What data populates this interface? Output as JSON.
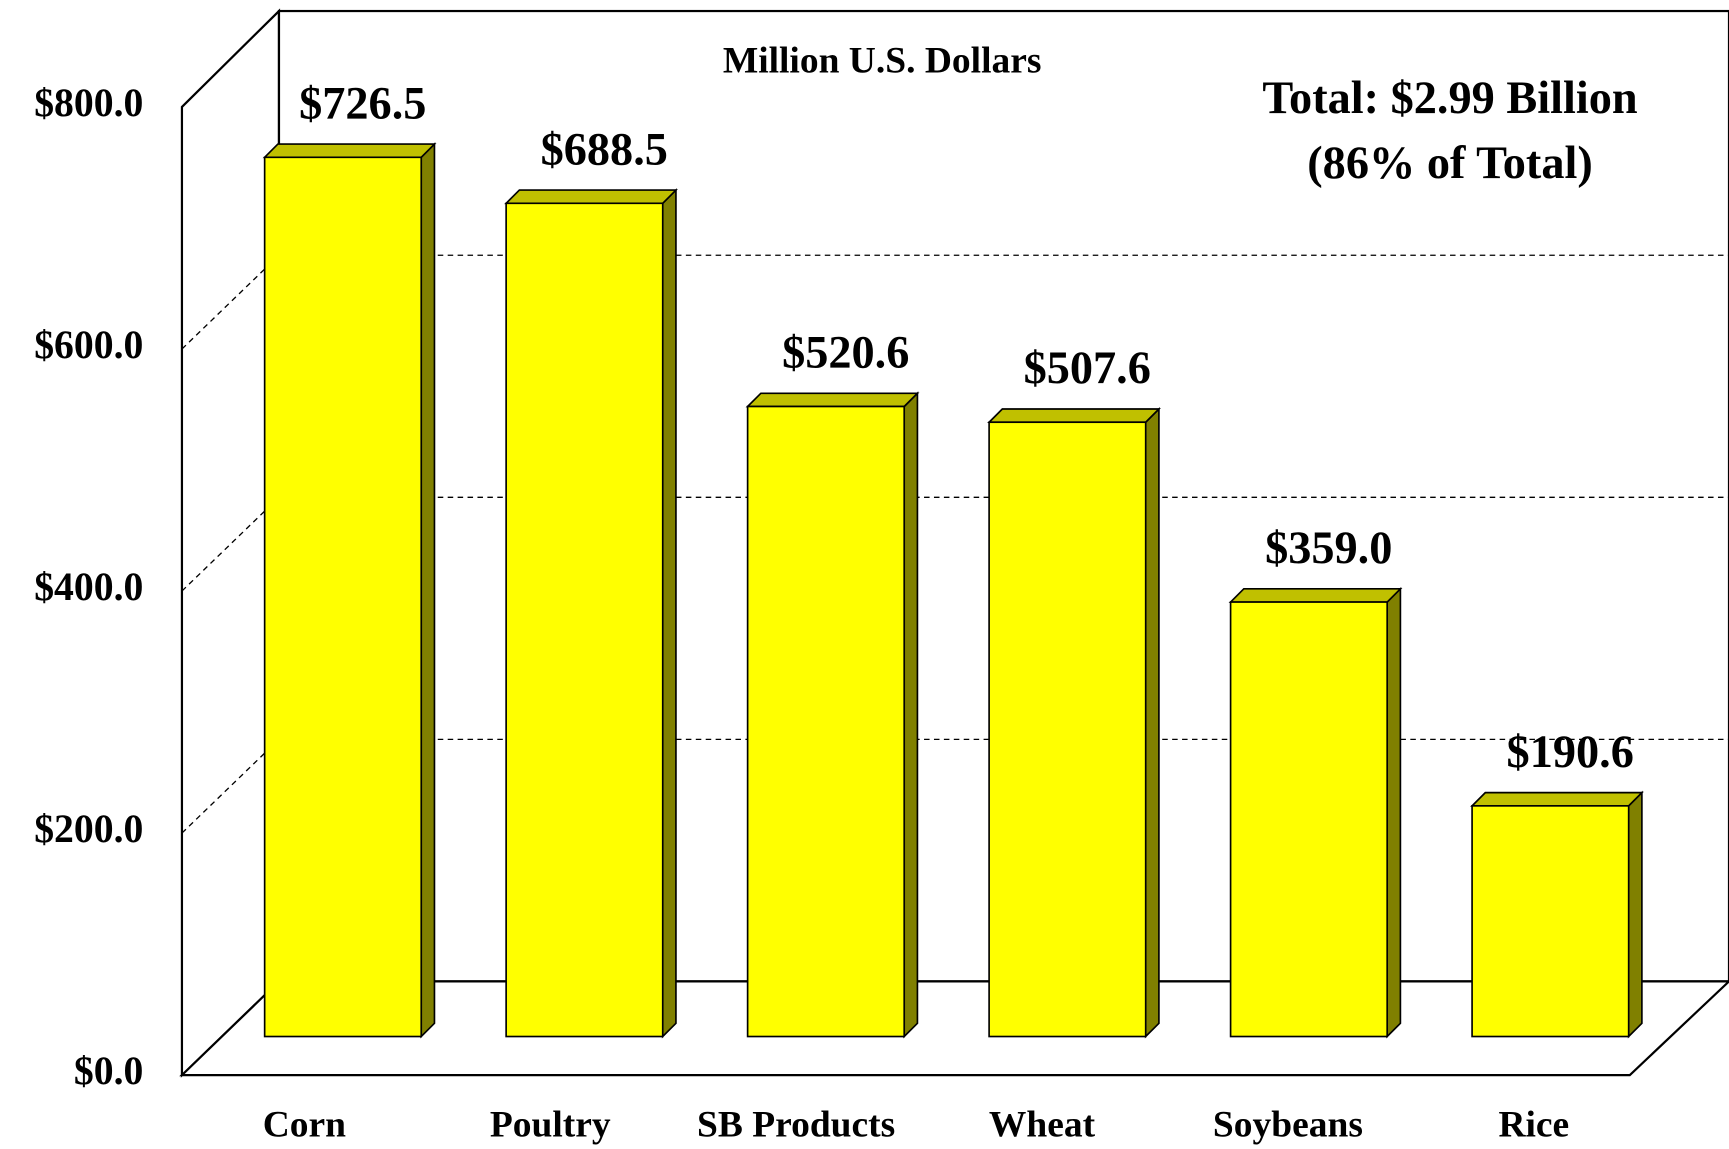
{
  "chart_data": {
    "type": "bar3d",
    "title": "Million U.S. Dollars",
    "annotations": [
      "Total:  $2.99 Billion",
      "(86% of Total)"
    ],
    "categories": [
      "Corn",
      "Poultry",
      "SB Products",
      "Wheat",
      "Soybeans",
      "Rice"
    ],
    "values": [
      726.5,
      688.5,
      520.6,
      507.6,
      359.0,
      190.6
    ],
    "value_labels": [
      "$726.5",
      "$688.5",
      "$520.6",
      "$507.6",
      "$359.0",
      "$190.6"
    ],
    "color": "#ffff00",
    "ylim": [
      0,
      800
    ],
    "yticks": [
      {
        "value": 0,
        "label": "$0.0"
      },
      {
        "value": 200,
        "label": "$200.0"
      },
      {
        "value": 400,
        "label": "$400.0"
      },
      {
        "value": 600,
        "label": "$600.0"
      },
      {
        "value": 800,
        "label": "$800.0"
      }
    ],
    "grid": true
  }
}
